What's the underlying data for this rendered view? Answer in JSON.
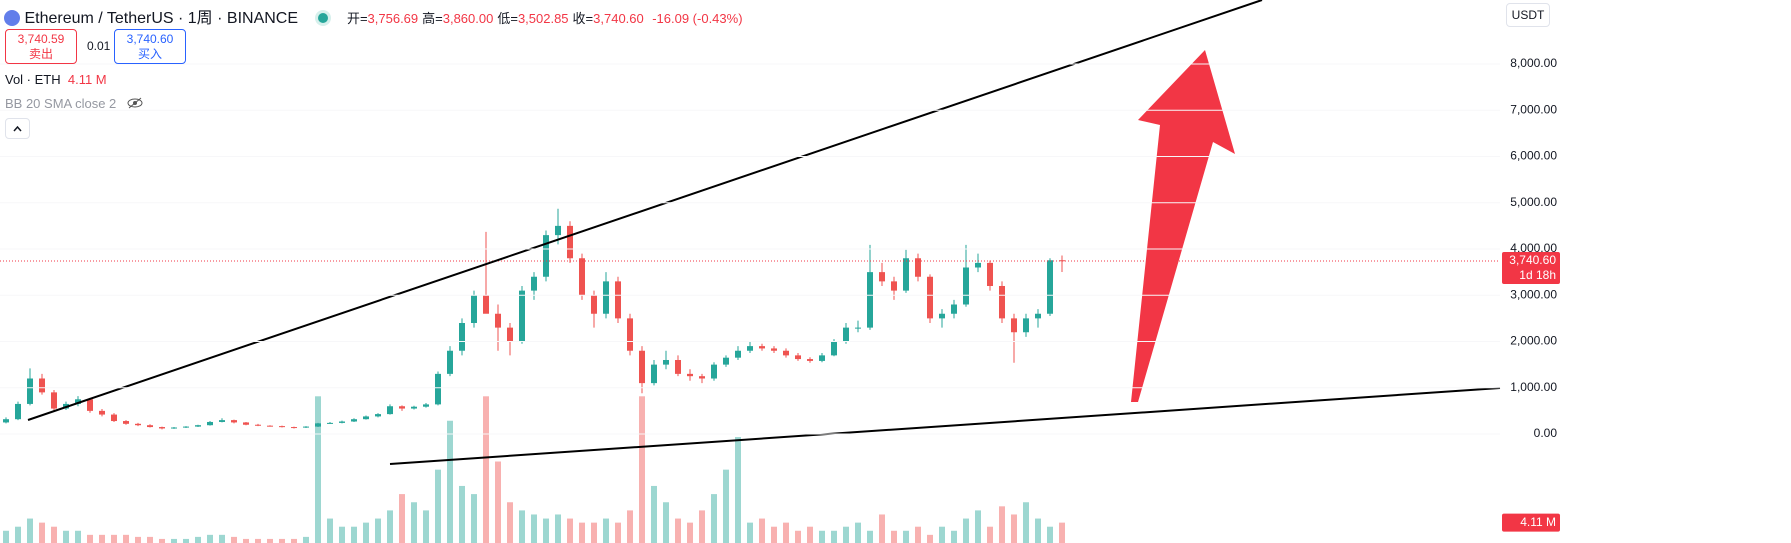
{
  "header": {
    "title": "Ethereum / TetherUS · 1周 · BINANCE",
    "ohlc": [
      {
        "label": "开=",
        "value": "3,756.69"
      },
      {
        "label": "高=",
        "value": "3,860.00"
      },
      {
        "label": "低=",
        "value": "3,502.85"
      },
      {
        "label": "收=",
        "value": "3,740.60"
      }
    ],
    "change": "-16.09 (-0.43%)"
  },
  "trade": {
    "sell_price": "3,740.59",
    "sell": "卖出",
    "spread": "0.01",
    "buy_price": "3,740.60",
    "buy": "买入"
  },
  "indicators": {
    "vol_name": "Vol · ETH",
    "vol_value": "4.11 M",
    "bb": "BB 20 SMA close 2"
  },
  "currency": "USDT",
  "price_tag": {
    "label": "3,740.60",
    "countdown": "1d 18h"
  },
  "volume_tag": "4.11 M",
  "chart_data": {
    "type": "candlestick",
    "up_color": "#26a69a",
    "down_color": "#ef5350",
    "ylim": [
      -2357,
      9384
    ],
    "yticks": [
      {
        "value": 0,
        "label": "0.00"
      },
      {
        "value": 1000,
        "label": "1,000.00"
      },
      {
        "value": 2000,
        "label": "2,000.00"
      },
      {
        "value": 3000,
        "label": "3,000.00"
      },
      {
        "value": 4000,
        "label": "4,000.00"
      },
      {
        "value": 5000,
        "label": "5,000.00"
      },
      {
        "value": 6000,
        "label": "6,000.00"
      },
      {
        "value": 7000,
        "label": "7,000.00"
      },
      {
        "value": 8000,
        "label": "8,000.00"
      }
    ],
    "ohlc": [
      [
        250,
        360,
        230,
        320
      ],
      [
        320,
        700,
        300,
        650
      ],
      [
        650,
        1420,
        620,
        1200
      ],
      [
        1200,
        1300,
        850,
        900
      ],
      [
        900,
        950,
        500,
        550
      ],
      [
        550,
        700,
        520,
        650
      ],
      [
        650,
        820,
        600,
        750
      ],
      [
        750,
        780,
        460,
        500
      ],
      [
        500,
        540,
        380,
        420
      ],
      [
        420,
        450,
        260,
        280
      ],
      [
        280,
        300,
        200,
        220
      ],
      [
        220,
        240,
        170,
        190
      ],
      [
        190,
        210,
        140,
        150
      ],
      [
        150,
        160,
        100,
        120
      ],
      [
        120,
        150,
        110,
        140
      ],
      [
        140,
        170,
        130,
        160
      ],
      [
        160,
        200,
        150,
        190
      ],
      [
        190,
        280,
        180,
        260
      ],
      [
        260,
        340,
        250,
        300
      ],
      [
        300,
        310,
        230,
        250
      ],
      [
        250,
        260,
        190,
        200
      ],
      [
        200,
        220,
        170,
        180
      ],
      [
        180,
        190,
        160,
        170
      ],
      [
        170,
        180,
        140,
        150
      ],
      [
        150,
        160,
        120,
        140
      ],
      [
        140,
        170,
        130,
        160
      ],
      [
        160,
        240,
        150,
        230
      ],
      [
        230,
        260,
        220,
        240
      ],
      [
        240,
        290,
        230,
        270
      ],
      [
        270,
        340,
        260,
        320
      ],
      [
        320,
        400,
        310,
        380
      ],
      [
        380,
        450,
        360,
        430
      ],
      [
        430,
        640,
        420,
        600
      ],
      [
        600,
        620,
        500,
        550
      ],
      [
        550,
        610,
        530,
        590
      ],
      [
        590,
        670,
        570,
        640
      ],
      [
        640,
        1350,
        620,
        1300
      ],
      [
        1300,
        1900,
        1250,
        1800
      ],
      [
        1800,
        2500,
        1700,
        2400
      ],
      [
        2400,
        3100,
        2300,
        3000
      ],
      [
        3000,
        4370,
        2700,
        2600
      ],
      [
        2600,
        2800,
        1800,
        2300
      ],
      [
        2300,
        2400,
        1700,
        2000
      ],
      [
        2000,
        3200,
        1950,
        3100
      ],
      [
        3100,
        3500,
        2900,
        3400
      ],
      [
        3400,
        4400,
        3300,
        4300
      ],
      [
        4300,
        4870,
        4100,
        4500
      ],
      [
        4500,
        4600,
        3700,
        3800
      ],
      [
        3800,
        3900,
        2900,
        3000
      ],
      [
        3000,
        3100,
        2300,
        2600
      ],
      [
        2600,
        3500,
        2500,
        3300
      ],
      [
        3300,
        3400,
        2400,
        2500
      ],
      [
        2500,
        2600,
        1700,
        1800
      ],
      [
        1800,
        1900,
        880,
        1100
      ],
      [
        1100,
        1600,
        1050,
        1500
      ],
      [
        1500,
        1800,
        1400,
        1600
      ],
      [
        1600,
        1700,
        1250,
        1300
      ],
      [
        1300,
        1400,
        1150,
        1250
      ],
      [
        1250,
        1300,
        1100,
        1200
      ],
      [
        1200,
        1550,
        1150,
        1500
      ],
      [
        1500,
        1700,
        1450,
        1650
      ],
      [
        1650,
        1900,
        1600,
        1800
      ],
      [
        1800,
        2000,
        1750,
        1900
      ],
      [
        1900,
        1950,
        1800,
        1850
      ],
      [
        1850,
        1900,
        1750,
        1800
      ],
      [
        1800,
        1850,
        1650,
        1700
      ],
      [
        1700,
        1750,
        1580,
        1620
      ],
      [
        1620,
        1660,
        1540,
        1580
      ],
      [
        1580,
        1750,
        1550,
        1700
      ],
      [
        1700,
        2050,
        1680,
        2000
      ],
      [
        2000,
        2400,
        1950,
        2300
      ],
      [
        2300,
        2450,
        2200,
        2300
      ],
      [
        2300,
        4090,
        2250,
        3500
      ],
      [
        3500,
        3700,
        3200,
        3300
      ],
      [
        3300,
        3400,
        2900,
        3100
      ],
      [
        3100,
        3980,
        3050,
        3800
      ],
      [
        3800,
        3900,
        3300,
        3400
      ],
      [
        3400,
        3450,
        2400,
        2500
      ],
      [
        2500,
        2700,
        2300,
        2600
      ],
      [
        2600,
        2900,
        2500,
        2800
      ],
      [
        2800,
        4090,
        2750,
        3600
      ],
      [
        3600,
        3900,
        3500,
        3700
      ],
      [
        3700,
        3750,
        3100,
        3200
      ],
      [
        3200,
        3300,
        2400,
        2500
      ],
      [
        2500,
        2600,
        1540,
        2200
      ],
      [
        2200,
        2600,
        2100,
        2500
      ],
      [
        2500,
        2700,
        2300,
        2600
      ],
      [
        2600,
        3800,
        2550,
        3756.69
      ],
      [
        3756.69,
        3860,
        3502.85,
        3740.6
      ]
    ],
    "volume": [
      3,
      4,
      6,
      5,
      4,
      3,
      3,
      2,
      2,
      2,
      2,
      1.5,
      1.5,
      1,
      1,
      1,
      1.5,
      2,
      2,
      1.5,
      1,
      1,
      1,
      1,
      1,
      1.5,
      36,
      6,
      4,
      4,
      5,
      6,
      8,
      12,
      10,
      8,
      18,
      30,
      14,
      12,
      36,
      20,
      10,
      8,
      7,
      6,
      7,
      6,
      5,
      5,
      6,
      5,
      8,
      36,
      14,
      10,
      6,
      5,
      8,
      12,
      18,
      26,
      5,
      6,
      4,
      5,
      3,
      4,
      3,
      3,
      4,
      5,
      3,
      7,
      3,
      3,
      4,
      2,
      4,
      3,
      6,
      8,
      4,
      9,
      7,
      10,
      6,
      4,
      5
    ],
    "vlim": [
      0,
      40
    ]
  }
}
